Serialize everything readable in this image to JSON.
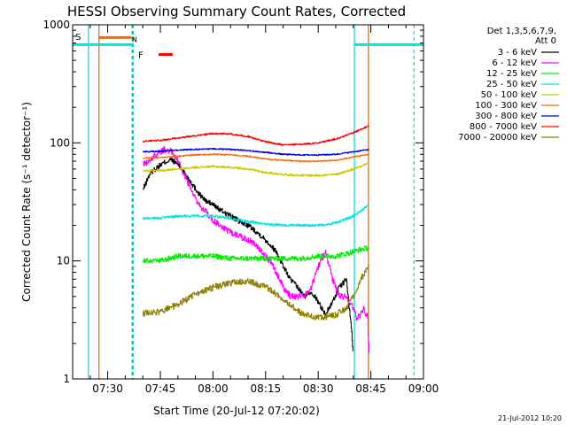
{
  "chart_data": {
    "type": "line",
    "title": "HESSI Observing Summary Count Rates, Corrected",
    "xlabel": "Start Time (20-Jul-12 07:20:02)",
    "ylabel": "Corrected Count Rate (s⁻¹ detector⁻¹)",
    "yscale": "log",
    "xlim_minutes": [
      440,
      540
    ],
    "ylim": [
      1,
      1000
    ],
    "x_ticks": [
      {
        "minute": 450,
        "label": "07:30"
      },
      {
        "minute": 465,
        "label": "07:45"
      },
      {
        "minute": 480,
        "label": "08:00"
      },
      {
        "minute": 495,
        "label": "08:15"
      },
      {
        "minute": 510,
        "label": "08:30"
      },
      {
        "minute": 525,
        "label": "08:45"
      },
      {
        "minute": 540,
        "label": "09:00"
      }
    ],
    "y_ticks": [
      {
        "value": 1,
        "label": "1"
      },
      {
        "value": 10,
        "label": "10"
      },
      {
        "value": 100,
        "label": "100"
      },
      {
        "value": 1000,
        "label": "1000"
      }
    ],
    "legend_header": [
      "Det 1,3,5,6,7,9,",
      "Att 0"
    ],
    "legend_placement": "right",
    "flag_labels": {
      "S": "S",
      "N": "N",
      "F": "F"
    },
    "timestamp": "21-Jul-2012 10:20",
    "vertical_markers": [
      {
        "minute": 444.5,
        "color": "#00e5e5",
        "style": "solid"
      },
      {
        "minute": 447.5,
        "color": "#ff6600",
        "style": "solid"
      },
      {
        "minute": 457.0,
        "color": "#00c000",
        "style": "dashed"
      },
      {
        "minute": 457.3,
        "color": "#00e5e5",
        "style": "dashed"
      },
      {
        "minute": 520.3,
        "color": "#00e5e5",
        "style": "solid"
      },
      {
        "minute": 524.3,
        "color": "#ff6600",
        "style": "solid"
      },
      {
        "minute": 537.3,
        "color": "#00e5e5",
        "style": "dashed"
      }
    ],
    "flag_bars": [
      {
        "flag": "S",
        "x_start": 440,
        "x_end": 457.3,
        "y": 680,
        "color": "#00e5e5"
      },
      {
        "flag": "S",
        "x_start": 447.5,
        "x_end": 456.8,
        "y": 780,
        "color": "#ff6600"
      },
      {
        "flag": "N",
        "x_start": 520.3,
        "x_end": 540,
        "y": 680,
        "color": "#00e5e5"
      },
      {
        "flag": "F",
        "x_start": 464.5,
        "x_end": 468.5,
        "y": 560,
        "color": "#ff0000"
      }
    ],
    "series": [
      {
        "name": "3 - 6 keV",
        "color": "#000000",
        "noise": 0.05,
        "x": [
          460,
          462,
          464,
          466,
          468,
          470,
          472,
          474,
          476,
          478,
          480,
          482,
          484,
          486,
          488,
          490,
          492,
          494,
          496,
          498,
          500,
          502,
          504,
          506,
          508,
          510,
          512,
          514,
          516,
          518,
          519.5,
          520
        ],
        "y": [
          40,
          55,
          62,
          68,
          72,
          66,
          55,
          45,
          37,
          32,
          30,
          27,
          25,
          23,
          21,
          20,
          18,
          16,
          14,
          12,
          9,
          7,
          6,
          5,
          5.5,
          4.5,
          3.5,
          4.5,
          6,
          7,
          2.5,
          1.5
        ]
      },
      {
        "name": "6 - 12 keV",
        "color": "#ff00ff",
        "noise": 0.06,
        "x": [
          460,
          462,
          464,
          466,
          468,
          470,
          472,
          474,
          476,
          478,
          480,
          482,
          484,
          486,
          488,
          490,
          492,
          494,
          496,
          498,
          500,
          502,
          504,
          506,
          508,
          510,
          512,
          514,
          516,
          518,
          520,
          521,
          522,
          523,
          523.5,
          524,
          524.5
        ],
        "y": [
          65,
          72,
          80,
          88,
          85,
          70,
          52,
          38,
          30,
          26,
          22,
          20,
          18,
          17,
          16,
          15,
          14,
          12,
          10,
          8,
          6,
          5,
          5,
          5,
          6,
          9,
          12,
          7,
          5,
          5,
          4,
          3.2,
          3.6,
          4,
          3.5,
          3.5,
          1.5
        ]
      },
      {
        "name": "12 - 25 keV",
        "color": "#00ee00",
        "noise": 0.05,
        "x": [
          460,
          465,
          470,
          475,
          480,
          485,
          490,
          495,
          500,
          505,
          510,
          515,
          518,
          520,
          522,
          524.5
        ],
        "y": [
          10,
          10,
          11,
          11,
          11,
          10.5,
          10.5,
          10.5,
          10.5,
          10.5,
          11,
          11,
          11.5,
          12,
          12.5,
          13
        ]
      },
      {
        "name": "25 - 50 keV",
        "color": "#00e5e5",
        "noise": 0.025,
        "x": [
          460,
          465,
          470,
          475,
          480,
          485,
          490,
          495,
          500,
          505,
          510,
          515,
          520,
          524.5
        ],
        "y": [
          23,
          23,
          24,
          24,
          24,
          23,
          21.5,
          20.5,
          20,
          20,
          20,
          21,
          24,
          30
        ]
      },
      {
        "name": "50 - 100 keV",
        "color": "#cccc00",
        "noise": 0.02,
        "x": [
          460,
          465,
          470,
          475,
          480,
          485,
          490,
          495,
          500,
          505,
          510,
          515,
          520,
          524.5
        ],
        "y": [
          58,
          58,
          60,
          62,
          63,
          62,
          60,
          56,
          54,
          53,
          53,
          54,
          60,
          68
        ]
      },
      {
        "name": "100 - 300 keV",
        "color": "#ff6600",
        "noise": 0.012,
        "x": [
          460,
          465,
          470,
          475,
          480,
          485,
          490,
          495,
          500,
          505,
          510,
          515,
          520,
          524.5
        ],
        "y": [
          74,
          75,
          77,
          79,
          80,
          79,
          77,
          73,
          71,
          70,
          70,
          71,
          76,
          80
        ]
      },
      {
        "name": "300 - 800 keV",
        "color": "#0000ee",
        "noise": 0.012,
        "x": [
          460,
          465,
          470,
          475,
          480,
          485,
          490,
          495,
          500,
          505,
          510,
          515,
          520,
          524.5
        ],
        "y": [
          84,
          85,
          87,
          88,
          89,
          88,
          86,
          83,
          80,
          79,
          79,
          80,
          84,
          88
        ]
      },
      {
        "name": "800 - 7000 keV",
        "color": "#ff0000",
        "noise": 0.015,
        "x": [
          460,
          465,
          470,
          475,
          480,
          485,
          490,
          495,
          500,
          505,
          510,
          515,
          520,
          524.5
        ],
        "y": [
          103,
          105,
          110,
          115,
          120,
          119,
          113,
          102,
          96,
          97,
          100,
          108,
          122,
          140
        ]
      },
      {
        "name": "7000 - 20000 keV",
        "color": "#8b8000",
        "noise": 0.06,
        "x": [
          460,
          465,
          470,
          475,
          480,
          485,
          490,
          495,
          500,
          505,
          510,
          515,
          518,
          520,
          522,
          524.5
        ],
        "y": [
          3.6,
          3.7,
          4.3,
          5.2,
          6,
          6.5,
          6.8,
          6,
          4.8,
          3.6,
          3.3,
          3.5,
          4,
          5,
          7,
          9
        ]
      }
    ]
  }
}
